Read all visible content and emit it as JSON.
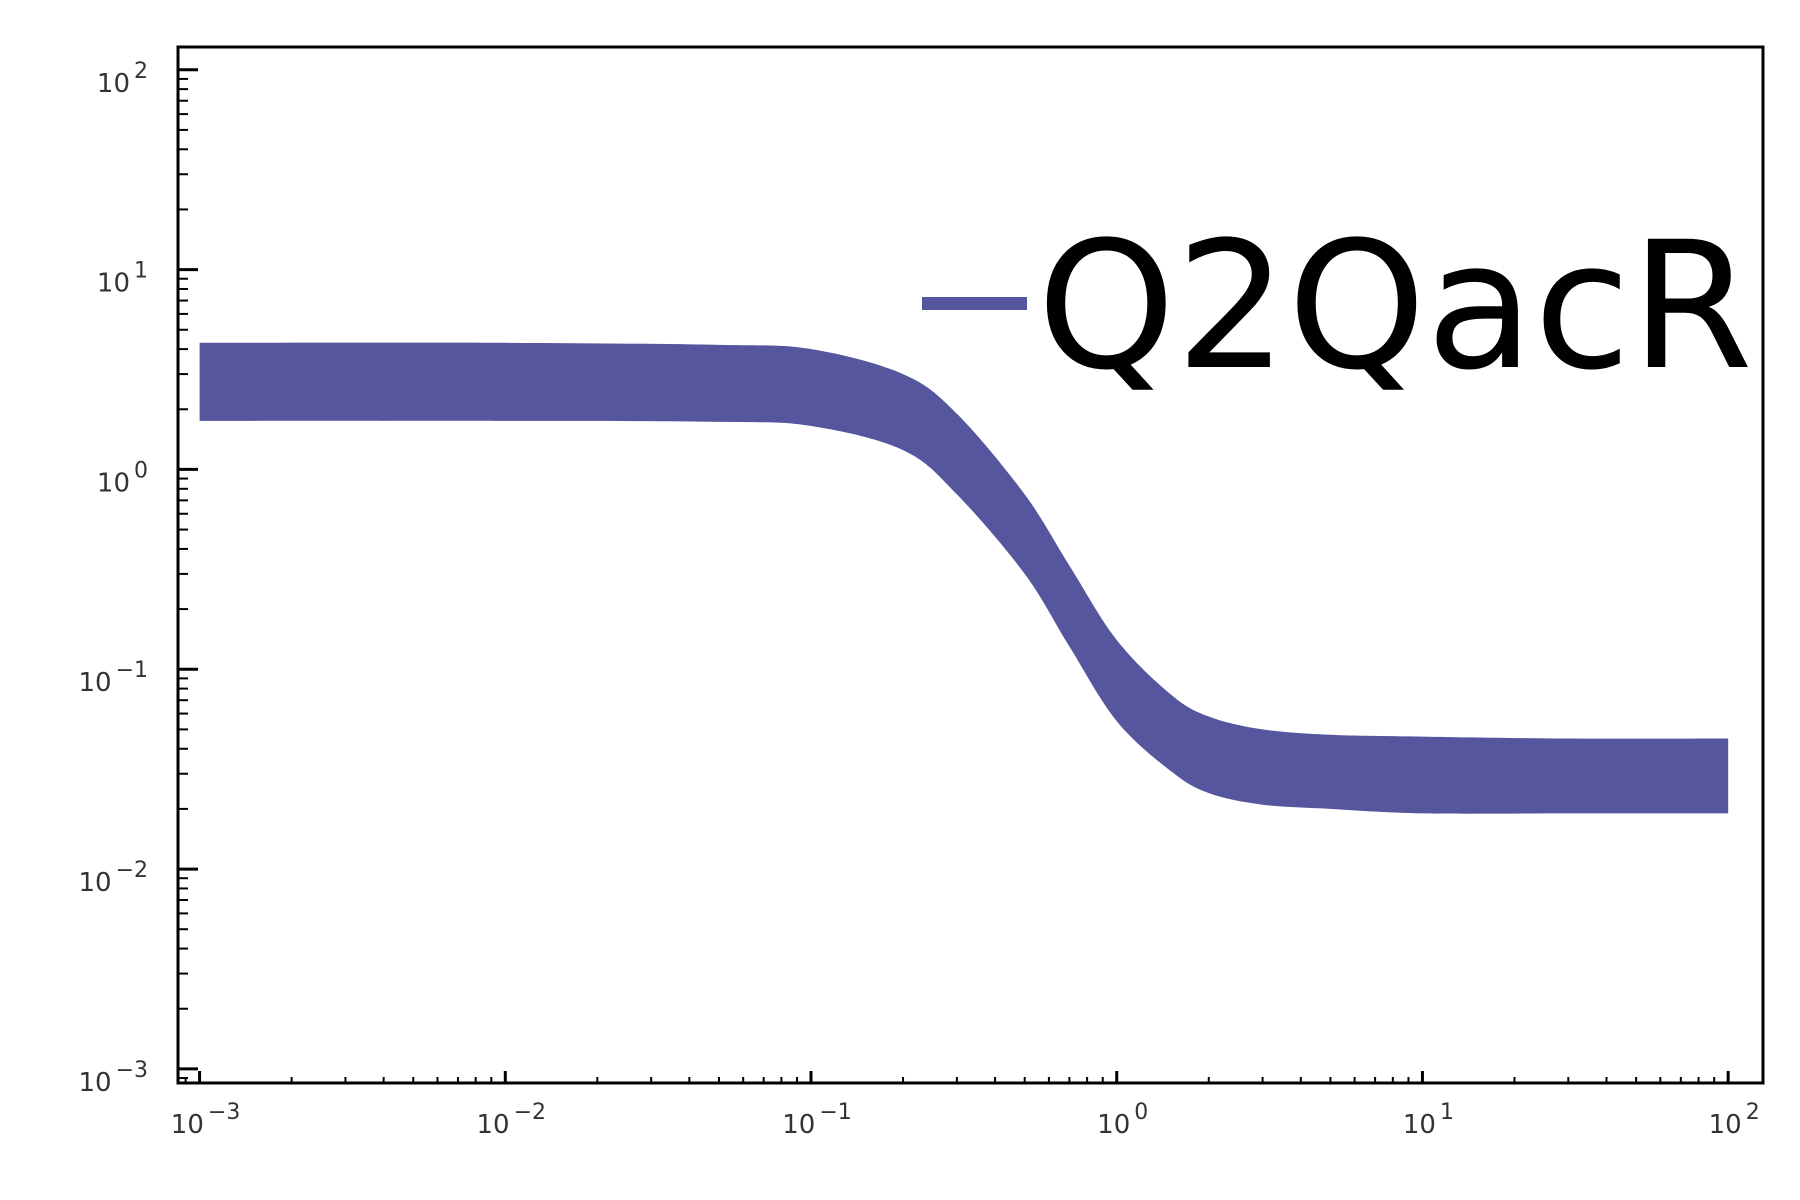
{
  "chart_data": {
    "type": "line",
    "x_scale": "log",
    "y_scale": "log",
    "xlim": [
      0.00085,
      130
    ],
    "ylim": [
      0.00085,
      130
    ],
    "x_ticks": [
      {
        "value": 0.001,
        "base": "10",
        "exp": "−3"
      },
      {
        "value": 0.01,
        "base": "10",
        "exp": "−2"
      },
      {
        "value": 0.1,
        "base": "10",
        "exp": "−1"
      },
      {
        "value": 1,
        "base": "10",
        "exp": "0"
      },
      {
        "value": 10,
        "base": "10",
        "exp": "1"
      },
      {
        "value": 100,
        "base": "10",
        "exp": "2"
      }
    ],
    "y_ticks": [
      {
        "value": 0.001,
        "base": "10",
        "exp": "−3"
      },
      {
        "value": 0.01,
        "base": "10",
        "exp": "−2"
      },
      {
        "value": 0.1,
        "base": "10",
        "exp": "−1"
      },
      {
        "value": 1,
        "base": "10",
        "exp": "0"
      },
      {
        "value": 10,
        "base": "10",
        "exp": "1"
      },
      {
        "value": 100,
        "base": "10",
        "exp": "2"
      }
    ],
    "grid": false,
    "legend_position": "top-right",
    "series": [
      {
        "name": "Q2QacR",
        "color": "#55569e",
        "style": "thick band",
        "x": [
          0.001,
          0.01,
          0.05,
          0.1,
          0.2,
          0.3,
          0.5,
          0.7,
          1,
          1.5,
          2,
          3,
          5,
          10,
          30,
          100
        ],
        "y_upper": [
          4.3,
          4.3,
          4.2,
          4.0,
          3.0,
          1.9,
          0.75,
          0.33,
          0.14,
          0.075,
          0.058,
          0.05,
          0.047,
          0.046,
          0.045,
          0.045
        ],
        "y_lower": [
          1.75,
          1.75,
          1.73,
          1.65,
          1.25,
          0.75,
          0.3,
          0.13,
          0.055,
          0.031,
          0.024,
          0.021,
          0.02,
          0.019,
          0.019,
          0.019
        ]
      }
    ]
  }
}
